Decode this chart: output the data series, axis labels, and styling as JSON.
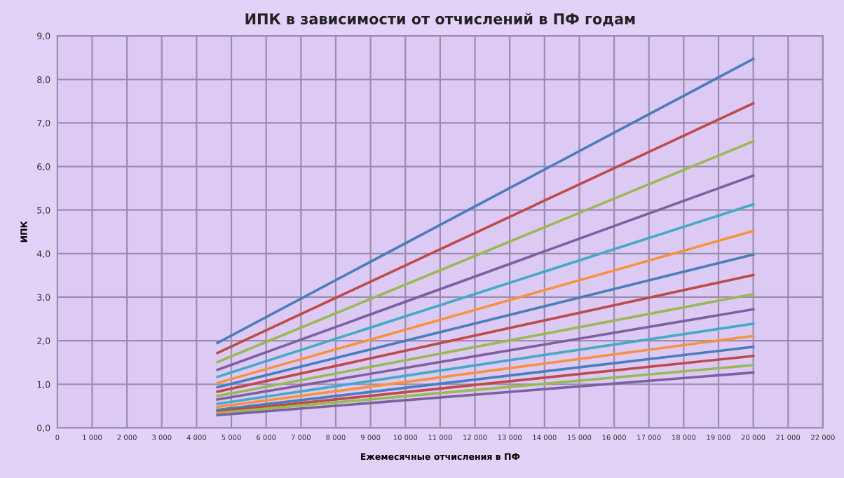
{
  "chart_data": {
    "type": "line",
    "title": "ИПК в зависимости от отчислений в ПФ годам",
    "xlabel": "Ежемесячные отчисления в ПФ",
    "ylabel": "ИПК",
    "x": [
      4600,
      20000
    ],
    "series": [
      {
        "color": "#4a7ebb",
        "values": [
          1.95,
          8.47
        ]
      },
      {
        "color": "#be4b48",
        "values": [
          1.72,
          7.45
        ]
      },
      {
        "color": "#98b954",
        "values": [
          1.51,
          6.58
        ]
      },
      {
        "color": "#7d60a0",
        "values": [
          1.33,
          5.79
        ]
      },
      {
        "color": "#46aac5",
        "values": [
          1.17,
          5.13
        ]
      },
      {
        "color": "#f69240",
        "values": [
          1.03,
          4.52
        ]
      },
      {
        "color": "#4a7ebb",
        "values": [
          0.93,
          3.98
        ]
      },
      {
        "color": "#be4b48",
        "values": [
          0.83,
          3.51
        ]
      },
      {
        "color": "#98b954",
        "values": [
          0.73,
          3.07
        ]
      },
      {
        "color": "#7d60a0",
        "values": [
          0.65,
          2.72
        ]
      },
      {
        "color": "#46aac5",
        "values": [
          0.55,
          2.39
        ]
      },
      {
        "color": "#f69240",
        "values": [
          0.48,
          2.11
        ]
      },
      {
        "color": "#4a7ebb",
        "values": [
          0.41,
          1.86
        ]
      },
      {
        "color": "#be4b48",
        "values": [
          0.37,
          1.65
        ]
      },
      {
        "color": "#98b954",
        "values": [
          0.34,
          1.44
        ]
      },
      {
        "color": "#7d60a0",
        "values": [
          0.29,
          1.27
        ]
      }
    ],
    "xlim": [
      0,
      22000
    ],
    "xticks": [
      0,
      {
        "value": 1000,
        "label": "1 000"
      },
      {
        "value": 2000,
        "label": "2 000"
      },
      {
        "value": 3000,
        "label": "3 000"
      },
      {
        "value": 4000,
        "label": "4 000"
      },
      {
        "value": 5000,
        "label": "5 000"
      },
      {
        "value": 6000,
        "label": "6 000"
      },
      {
        "value": 7000,
        "label": "7 000"
      },
      {
        "value": 8000,
        "label": "8 000"
      },
      {
        "value": 9000,
        "label": "9 000"
      },
      {
        "value": 10000,
        "label": "10 000"
      },
      {
        "value": 11000,
        "label": "11 000"
      },
      {
        "value": 12000,
        "label": "12 000"
      },
      {
        "value": 13000,
        "label": "13 000"
      },
      {
        "value": 14000,
        "label": "14 000"
      },
      {
        "value": 15000,
        "label": "15 000"
      },
      {
        "value": 16000,
        "label": "16 000"
      },
      {
        "value": 17000,
        "label": "17 000"
      },
      {
        "value": 18000,
        "label": "18 000"
      },
      {
        "value": 19000,
        "label": "19 000"
      },
      {
        "value": 20000,
        "label": "20 000"
      },
      {
        "value": 21000,
        "label": "21 000"
      },
      {
        "value": 22000,
        "label": "22 000"
      }
    ],
    "ylim": [
      0,
      9
    ],
    "yticks": [
      {
        "value": 0,
        "label": "0,0"
      },
      {
        "value": 1,
        "label": "1,0"
      },
      {
        "value": 2,
        "label": "2,0"
      },
      {
        "value": 3,
        "label": "3,0"
      },
      {
        "value": 4,
        "label": "4,0"
      },
      {
        "value": 5,
        "label": "5,0"
      },
      {
        "value": 6,
        "label": "6,0"
      },
      {
        "value": 7,
        "label": "7,0"
      },
      {
        "value": 8,
        "label": "8,0"
      },
      {
        "value": 9,
        "label": "9,0"
      }
    ],
    "grid": true,
    "marker": "none",
    "line_style": "solid"
  }
}
